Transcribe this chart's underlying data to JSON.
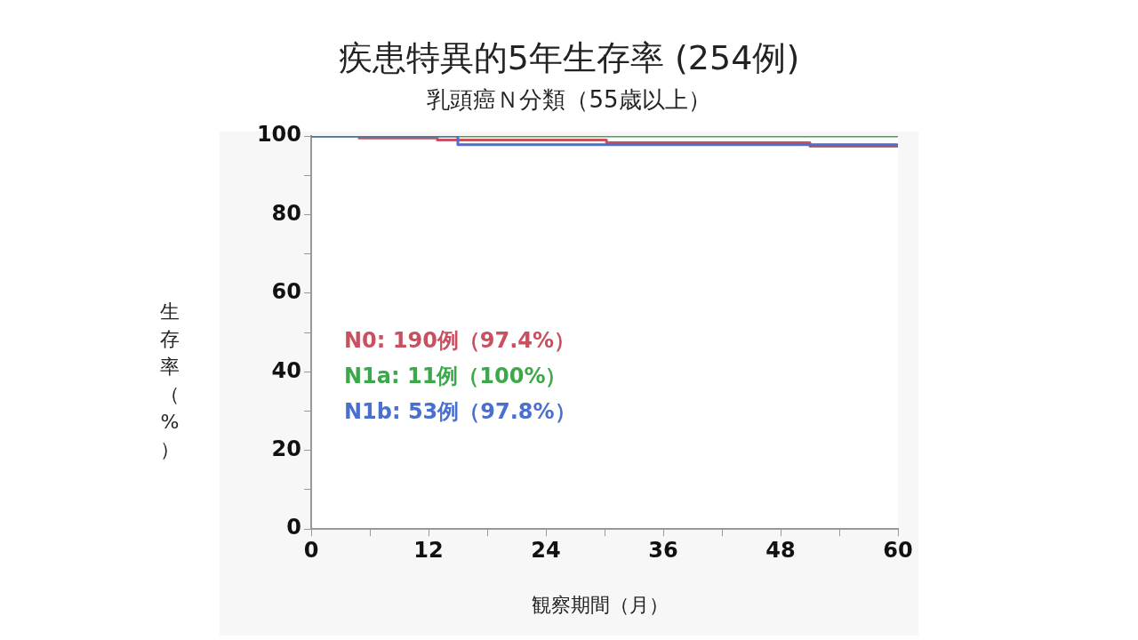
{
  "chart_data": {
    "type": "step",
    "title": "疾患特異的5年生存率 (254例)",
    "subtitle": "乳頭癌Ｎ分類（55歳以上）",
    "xlabel": "観察期間（月）",
    "ylabel": "生存率（%）",
    "xlim": [
      0,
      60
    ],
    "xticks": [
      0,
      {
        "value": 6,
        "label": null
      },
      12,
      {
        "value": 18,
        "label": null
      },
      24,
      {
        "value": 30,
        "label": null
      },
      36,
      {
        "value": 42,
        "label": null
      },
      48,
      {
        "value": 54,
        "label": null
      },
      60
    ],
    "ylim": [
      0,
      100
    ],
    "yticks": [
      0,
      {
        "value": 10,
        "label": null
      },
      20,
      {
        "value": 30,
        "label": null
      },
      40,
      {
        "value": 50,
        "label": null
      },
      60,
      {
        "value": 70,
        "label": null
      },
      80,
      {
        "value": 90,
        "label": null
      },
      100
    ],
    "grid": false,
    "legend": "bottom left",
    "marker": "none",
    "line_style": "solid",
    "series": [
      {
        "name": "N0: 190例（97.4%）",
        "color": "#c8505f",
        "x": [
          0,
          4.9,
          12.9,
          30.2,
          51,
          60
        ],
        "values": [
          100,
          99.5,
          99,
          98.3,
          97.4,
          97.4
        ]
      },
      {
        "name": "N1a: 11例（100%）",
        "color": "#3ca84a",
        "x": [
          0,
          60
        ],
        "values": [
          100,
          100
        ]
      },
      {
        "name": "N1b: 53例（97.8%）",
        "color": "#4a6fd0",
        "x": [
          0,
          15,
          60
        ],
        "values": [
          100,
          97.8,
          97.8
        ]
      }
    ]
  }
}
